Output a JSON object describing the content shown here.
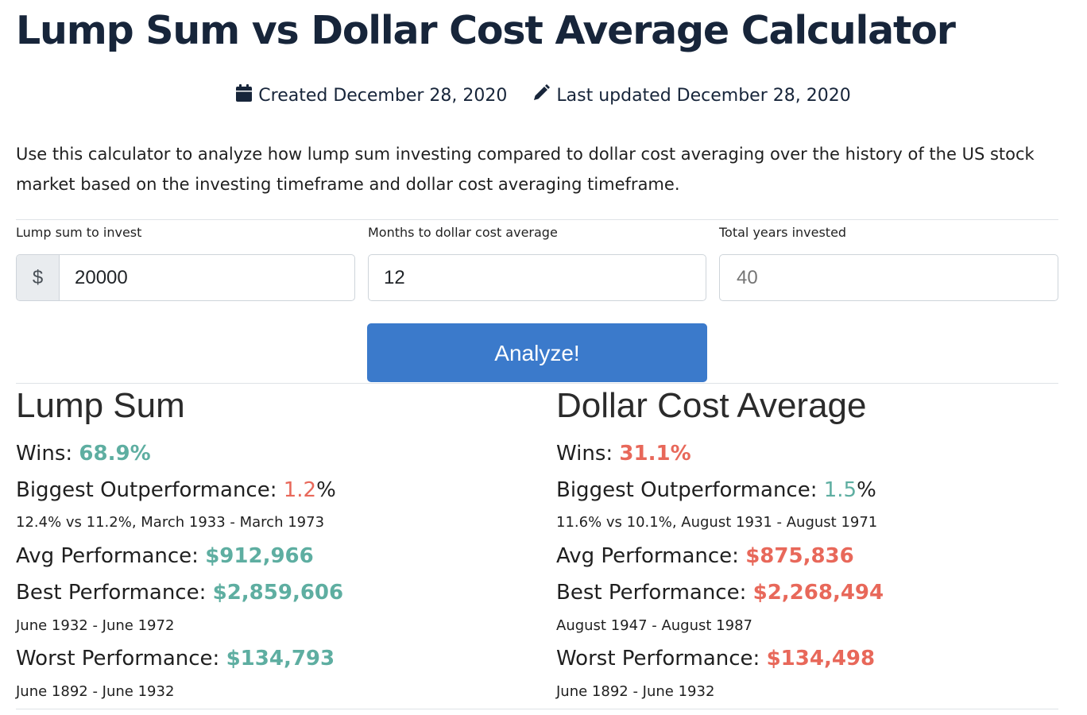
{
  "title": "Lump Sum vs Dollar Cost Average Calculator",
  "meta": {
    "created": "Created December 28, 2020",
    "updated": "Last updated December 28, 2020",
    "created_icon": "calendar-icon",
    "updated_icon": "pencil-icon"
  },
  "description": "Use this calculator to analyze how lump sum investing compared to dollar cost averaging over the history of the US stock market based on the investing timeframe and dollar cost averaging timeframe.",
  "form": {
    "lump_sum": {
      "label": "Lump sum to invest",
      "addon": "$",
      "value": "20000"
    },
    "months": {
      "label": "Months to dollar cost average",
      "value": "12"
    },
    "years": {
      "label": "Total years invested",
      "placeholder": "40"
    },
    "submit_label": "Analyze!"
  },
  "colors": {
    "good": "#5eaea1",
    "bad": "#e8685a",
    "button": "#3b7acb",
    "title": "#17253a"
  },
  "lump_sum": {
    "heading": "Lump Sum",
    "wins_label": "Wins: ",
    "wins_value": "68.9%",
    "outperf_label": "Biggest Outperformance: ",
    "outperf_value": "1.2",
    "outperf_suffix": "%",
    "outperf_detail": "12.4% vs 11.2%, March 1933 - March 1973",
    "avg_label": "Avg Performance: ",
    "avg_value": "$912,966",
    "best_label": "Best Performance: ",
    "best_value": "$2,859,606",
    "best_detail": "June 1932 - June 1972",
    "worst_label": "Worst Performance: ",
    "worst_value": "$134,793",
    "worst_detail": "June 1892 - June 1932"
  },
  "dca": {
    "heading": "Dollar Cost Average",
    "wins_label": "Wins: ",
    "wins_value": "31.1%",
    "outperf_label": "Biggest Outperformance: ",
    "outperf_value": "1.5",
    "outperf_suffix": "%",
    "outperf_detail": "11.6% vs 10.1%, August 1931 - August 1971",
    "avg_label": "Avg Performance: ",
    "avg_value": "$875,836",
    "best_label": "Best Performance: ",
    "best_value": "$2,268,494",
    "best_detail": "August 1947 - August 1987",
    "worst_label": "Worst Performance: ",
    "worst_value": "$134,498",
    "worst_detail": "June 1892 - June 1932"
  }
}
